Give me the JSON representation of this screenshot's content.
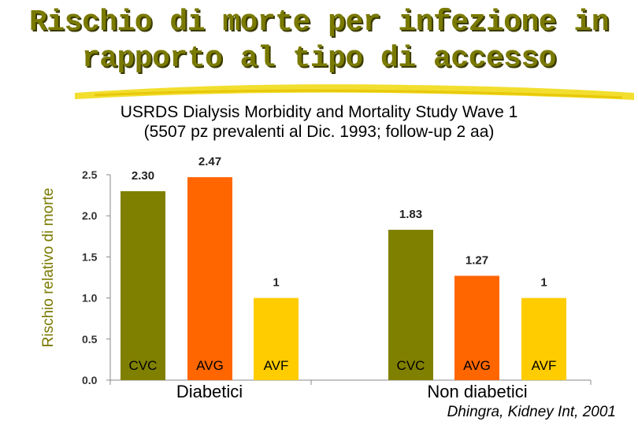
{
  "title_line1": "Rischio di morte per infezione in",
  "title_line2": "rapporto al tipo di accesso",
  "subtitle_line1": "USRDS Dialysis Morbidity and Mortality Study Wave 1",
  "subtitle_line2": "(5507 pz prevalenti al Dic. 1993; follow-up 2 aa)",
  "citation": "Dhingra, Kidney Int, 2001",
  "chart_data": {
    "type": "bar",
    "ylabel": "Rischio relativo di morte",
    "ylim": [
      0,
      2.5
    ],
    "yticks": [
      "0.0",
      "0.5",
      "1.0",
      "1.5",
      "2.0",
      "2.5"
    ],
    "grid": false,
    "groups": [
      {
        "name": "Diabetici",
        "bars": [
          {
            "category": "CVC",
            "value": 2.3,
            "label": "2.30",
            "color": "#808000"
          },
          {
            "category": "AVG",
            "value": 2.47,
            "label": "2.47",
            "color": "#ff6600"
          },
          {
            "category": "AVF",
            "value": 1.0,
            "label": "1",
            "color": "#ffcc00"
          }
        ]
      },
      {
        "name": "Non diabetici",
        "bars": [
          {
            "category": "CVC",
            "value": 1.83,
            "label": "1.83",
            "color": "#808000"
          },
          {
            "category": "AVG",
            "value": 1.27,
            "label": "1.27",
            "color": "#ff6600"
          },
          {
            "category": "AVF",
            "value": 1.0,
            "label": "1",
            "color": "#ffcc00"
          }
        ]
      }
    ]
  }
}
